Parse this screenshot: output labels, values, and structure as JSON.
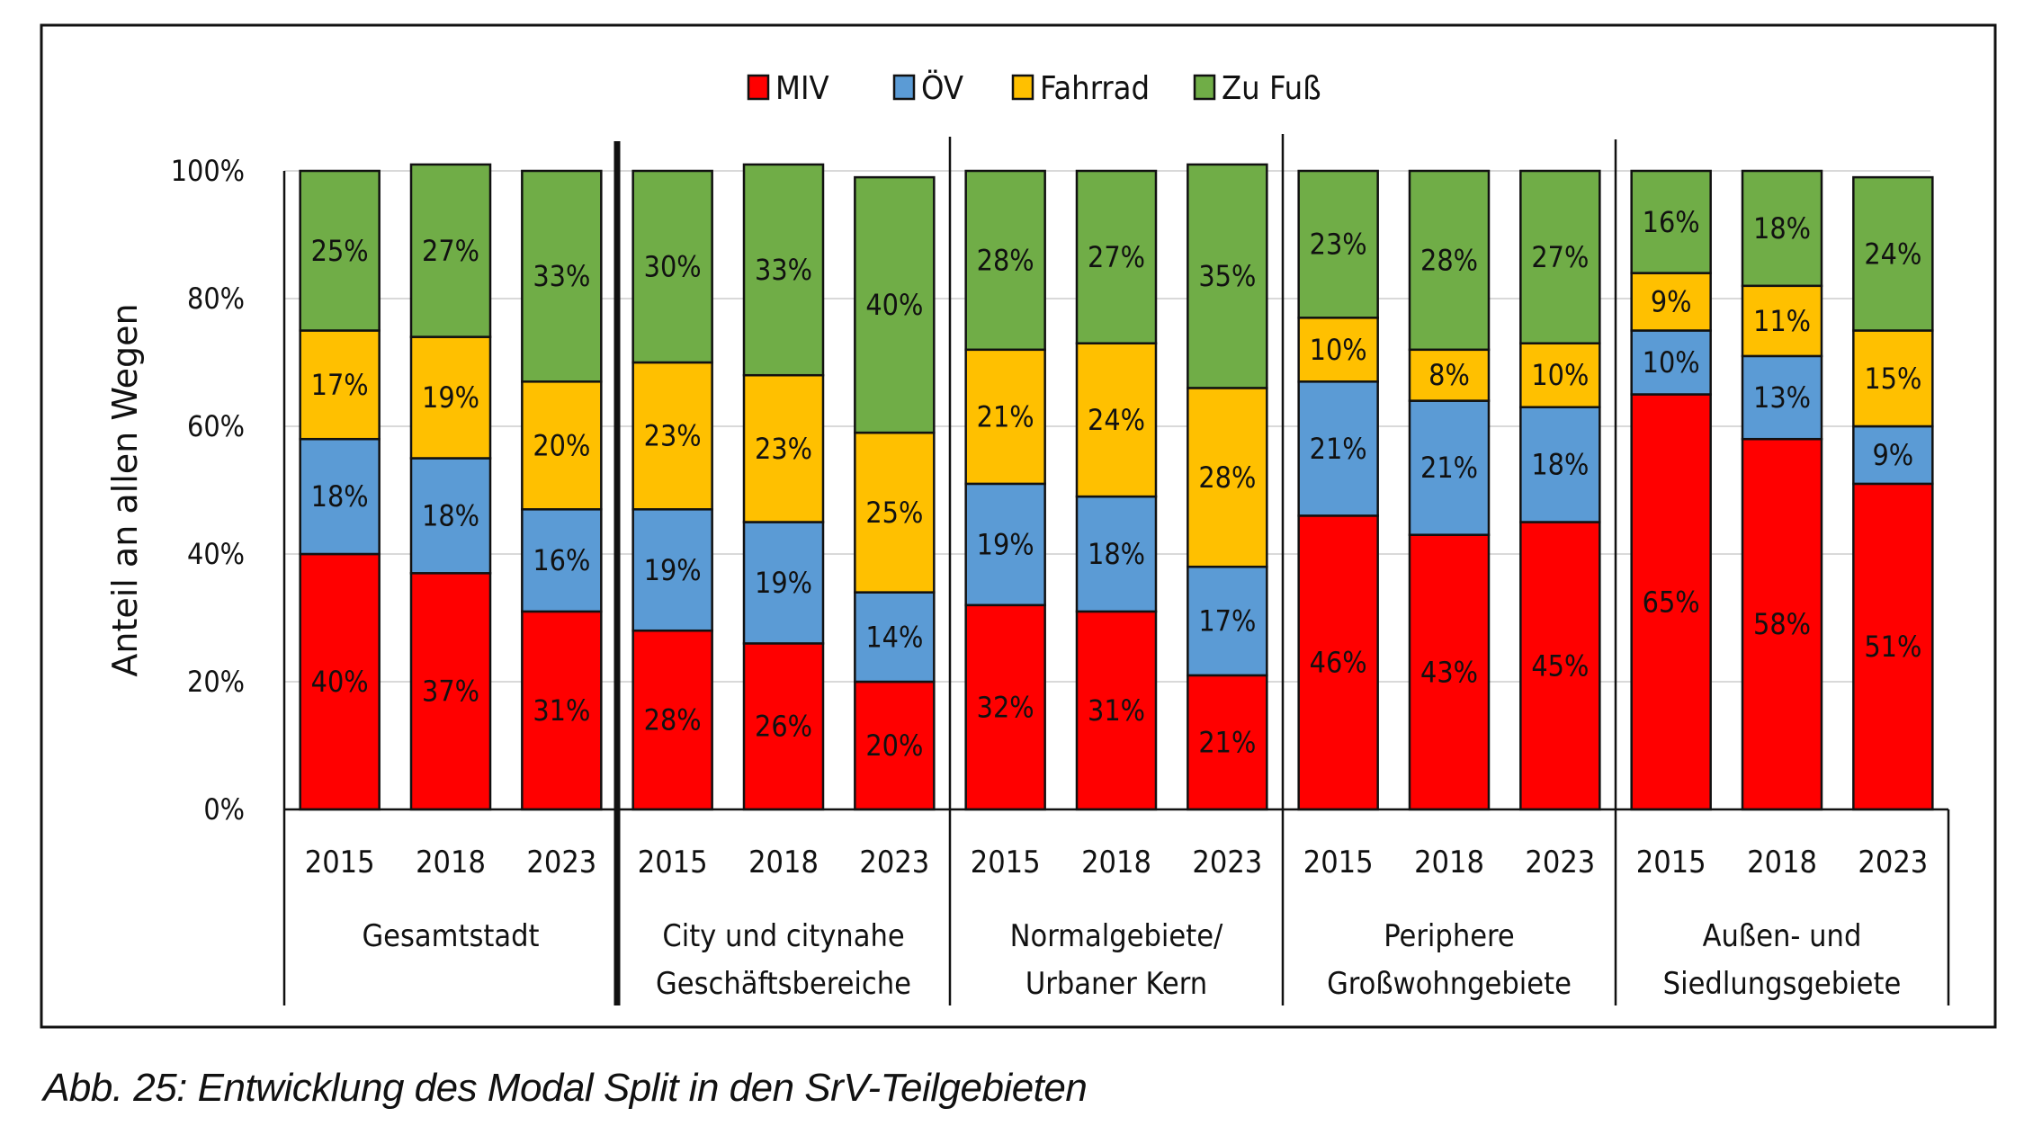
{
  "caption": "Abb. 25: Entwicklung des Modal Split in den SrV-Teilgebieten",
  "chart_data": {
    "type": "bar",
    "stacked": true,
    "title": "",
    "xlabel": "",
    "ylabel": "Anteil an allen Wegen",
    "ylim": [
      0,
      100
    ],
    "yticks": [
      "0%",
      "20%",
      "40%",
      "60%",
      "80%",
      "100%"
    ],
    "grid": true,
    "legend_position": "top-center",
    "groups": [
      {
        "label": "Gesamtstadt",
        "label_lines": [
          "Gesamtstadt"
        ],
        "years": [
          "2015",
          "2018",
          "2023"
        ]
      },
      {
        "label": "City und citynahe Geschäftsbereiche",
        "label_lines": [
          "City und citynahe",
          "Geschäftsbereiche"
        ],
        "years": [
          "2015",
          "2018",
          "2023"
        ]
      },
      {
        "label": "Normalgebiete/ Urbaner Kern",
        "label_lines": [
          "Normalgebiete/",
          "Urbaner Kern"
        ],
        "years": [
          "2015",
          "2018",
          "2023"
        ]
      },
      {
        "label": "Periphere Großwohngebiete",
        "label_lines": [
          "Periphere",
          "Großwohngebiete"
        ],
        "years": [
          "2015",
          "2018",
          "2023"
        ]
      },
      {
        "label": "Außen- und Siedlungsgebiete",
        "label_lines": [
          "Außen- und",
          "Siedlungsgebiete"
        ],
        "years": [
          "2015",
          "2018",
          "2023"
        ]
      }
    ],
    "series": [
      {
        "name": "MIV",
        "color": "#FF0000",
        "values": [
          40,
          37,
          31,
          28,
          26,
          20,
          32,
          31,
          21,
          46,
          43,
          45,
          65,
          58,
          51
        ]
      },
      {
        "name": "ÖV",
        "color": "#5B9BD5",
        "values": [
          18,
          18,
          16,
          19,
          19,
          14,
          19,
          18,
          17,
          21,
          21,
          18,
          10,
          13,
          9
        ]
      },
      {
        "name": "Fahrrad",
        "color": "#FFC000",
        "values": [
          17,
          19,
          20,
          23,
          23,
          25,
          21,
          24,
          28,
          10,
          8,
          10,
          9,
          11,
          15
        ]
      },
      {
        "name": "Zu Fuß",
        "color": "#70AD47",
        "values": [
          25,
          27,
          33,
          30,
          33,
          40,
          28,
          27,
          35,
          23,
          28,
          27,
          16,
          18,
          24
        ]
      }
    ]
  }
}
